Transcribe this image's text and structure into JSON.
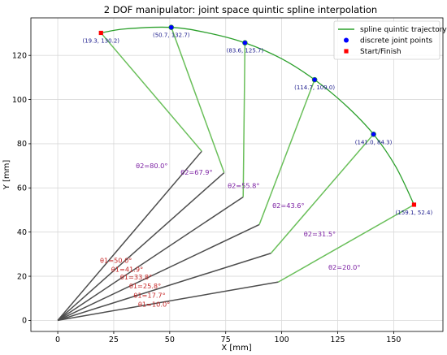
{
  "chart_data": {
    "type": "line",
    "title": "2 DOF manipulator: joint space quintic spline interpolation",
    "xlabel": "X [mm]",
    "ylabel": "Y [mm]",
    "xlim": [
      -12,
      172
    ],
    "ylim": [
      -5,
      137
    ],
    "xticks": [
      0,
      25,
      50,
      75,
      100,
      125,
      150
    ],
    "yticks": [
      0,
      20,
      40,
      60,
      80,
      100,
      120
    ],
    "grid": true,
    "legend_position": "top-right",
    "legend": [
      {
        "label": "spline quintic trajectory",
        "marker": "line",
        "color": "#2ca02c"
      },
      {
        "label": "discrete joint points",
        "marker": "circle",
        "color": "#0000ff"
      },
      {
        "label": "Start/Finish",
        "marker": "square",
        "color": "#ff0000"
      }
    ],
    "trajectory": [
      {
        "x": 19.3,
        "y": 130.2
      },
      {
        "x": 30.0,
        "y": 132.0
      },
      {
        "x": 50.7,
        "y": 132.7
      },
      {
        "x": 67.0,
        "y": 130.2
      },
      {
        "x": 83.6,
        "y": 125.7
      },
      {
        "x": 100.0,
        "y": 118.5
      },
      {
        "x": 114.7,
        "y": 109.0
      },
      {
        "x": 128.5,
        "y": 97.5
      },
      {
        "x": 141.0,
        "y": 84.3
      },
      {
        "x": 151.0,
        "y": 69.5
      },
      {
        "x": 159.1,
        "y": 52.4
      }
    ],
    "points": [
      {
        "x": 19.3,
        "y": 130.2,
        "label": "(19.3, 130.2)",
        "kind": "start"
      },
      {
        "x": 50.7,
        "y": 132.7,
        "label": "(50.7, 132.7)",
        "kind": "joint"
      },
      {
        "x": 83.6,
        "y": 125.7,
        "label": "(83.6, 125.7)",
        "kind": "joint"
      },
      {
        "x": 114.7,
        "y": 109.0,
        "label": "(114.7, 109.0)",
        "kind": "joint"
      },
      {
        "x": 141.0,
        "y": 84.3,
        "label": "(141.0, 84.3)",
        "kind": "joint"
      },
      {
        "x": 159.1,
        "y": 52.4,
        "label": "(159.1, 52.4)",
        "kind": "finish"
      }
    ],
    "links": [
      {
        "elbow": [
          64.3,
          76.6
        ],
        "end": [
          19.3,
          130.2
        ]
      },
      {
        "elbow": [
          74.3,
          66.9
        ],
        "end": [
          50.7,
          132.7
        ]
      },
      {
        "elbow": [
          82.8,
          55.9
        ],
        "end": [
          83.6,
          125.7
        ]
      },
      {
        "elbow": [
          90.0,
          43.4
        ],
        "end": [
          114.7,
          109.0
        ]
      },
      {
        "elbow": [
          95.2,
          30.4
        ],
        "end": [
          141.0,
          84.3
        ]
      },
      {
        "elbow": [
          98.5,
          17.4
        ],
        "end": [
          159.1,
          52.4
        ]
      }
    ],
    "theta2_labels": [
      {
        "text": "θ2=80.0°",
        "x": 42,
        "y": 69
      },
      {
        "text": "θ2=67.9°",
        "x": 62,
        "y": 66
      },
      {
        "text": "θ2=55.8°",
        "x": 83,
        "y": 60
      },
      {
        "text": "θ2=43.6°",
        "x": 103,
        "y": 51
      },
      {
        "text": "θ2=31.5°",
        "x": 117,
        "y": 38
      },
      {
        "text": "θ2=20.0°",
        "x": 128,
        "y": 23
      }
    ],
    "theta1_labels": [
      {
        "text": "θ1=50.0°",
        "x": 26,
        "y": 26
      },
      {
        "text": "θ1=41.9°",
        "x": 31,
        "y": 22
      },
      {
        "text": "θ1=33.8°",
        "x": 35,
        "y": 18.5
      },
      {
        "text": "θ1=25.8°",
        "x": 39,
        "y": 14.5
      },
      {
        "text": "θ1=17.7°",
        "x": 41,
        "y": 10.3
      },
      {
        "text": "θ1=10.0°",
        "x": 43,
        "y": 6.2
      }
    ]
  }
}
